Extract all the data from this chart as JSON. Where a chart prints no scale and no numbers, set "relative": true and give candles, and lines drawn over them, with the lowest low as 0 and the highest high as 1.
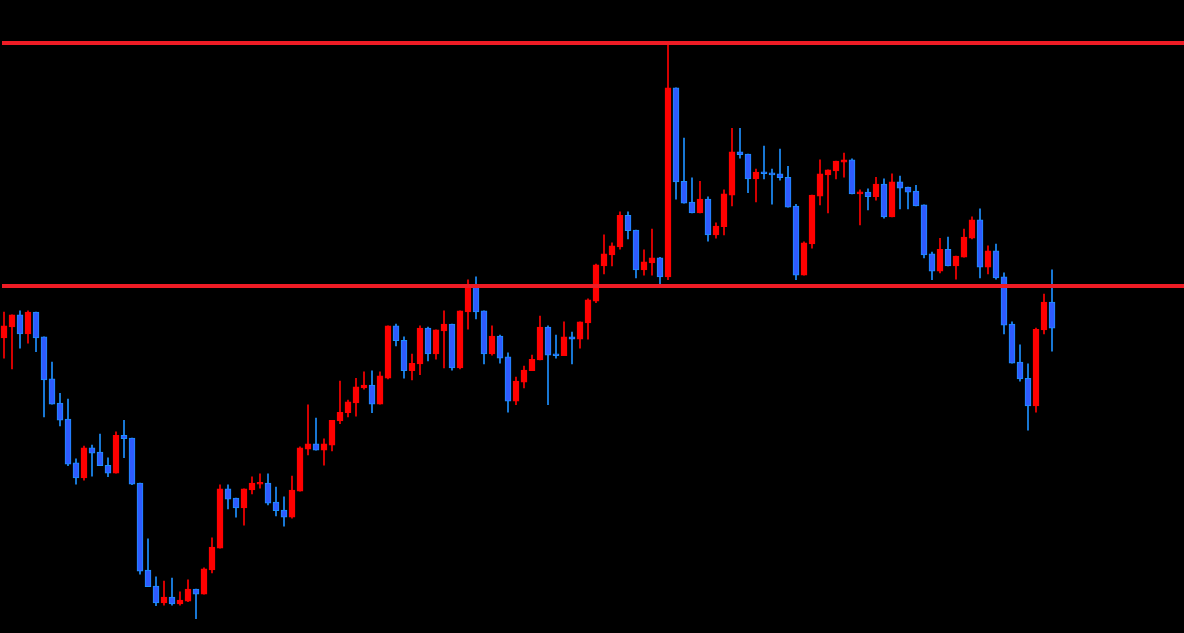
{
  "chart_data": {
    "type": "candlestick",
    "relative": true,
    "categories": [
      null,
      null,
      null,
      null,
      null,
      null,
      null,
      null,
      null,
      null,
      null,
      null,
      null,
      null,
      null,
      null,
      null,
      null,
      null,
      null,
      null,
      null,
      null,
      null,
      null,
      null,
      null,
      null,
      null,
      null,
      null,
      null,
      null,
      null,
      null,
      null,
      null,
      null,
      null,
      null,
      null,
      null,
      null,
      null,
      null,
      null,
      null,
      null,
      null,
      null,
      null,
      null,
      null,
      null,
      null,
      null,
      null,
      null,
      null,
      null,
      null,
      null,
      null,
      null,
      null,
      null,
      null,
      null,
      null,
      null,
      null,
      null,
      null,
      null,
      null,
      null,
      null,
      null,
      null,
      null,
      null,
      null,
      null,
      null,
      null,
      null,
      null,
      null,
      null,
      null,
      null,
      null,
      null,
      null,
      null,
      null,
      null,
      null,
      null,
      null,
      null,
      null,
      null,
      null,
      null,
      null,
      null,
      null,
      null,
      null,
      null,
      null,
      null,
      null,
      null,
      null,
      null,
      null,
      null,
      null,
      null,
      null,
      null,
      null,
      null,
      null,
      null,
      null,
      null,
      null,
      null,
      null
    ],
    "ohlc": [
      [
        0.488,
        0.533,
        0.453,
        0.509
      ],
      [
        0.507,
        0.528,
        0.434,
        0.528
      ],
      [
        0.528,
        0.535,
        0.47,
        0.495
      ],
      [
        0.495,
        0.535,
        0.479,
        0.533
      ],
      [
        0.533,
        0.533,
        0.464,
        0.488
      ],
      [
        0.49,
        0.49,
        0.351,
        0.415
      ],
      [
        0.417,
        0.446,
        0.373,
        0.373
      ],
      [
        0.375,
        0.392,
        0.335,
        0.345
      ],
      [
        0.347,
        0.382,
        0.266,
        0.269
      ],
      [
        0.271,
        0.278,
        0.234,
        0.245
      ],
      [
        0.245,
        0.3,
        0.241,
        0.297
      ],
      [
        0.297,
        0.302,
        0.248,
        0.288
      ],
      [
        0.29,
        0.321,
        0.266,
        0.266
      ],
      [
        0.267,
        0.28,
        0.247,
        0.253
      ],
      [
        0.253,
        0.325,
        0.253,
        0.319
      ],
      [
        0.319,
        0.345,
        0.28,
        0.313
      ],
      [
        0.314,
        0.314,
        0.233,
        0.234
      ],
      [
        0.236,
        0.236,
        0.078,
        0.083
      ],
      [
        0.085,
        0.139,
        0.056,
        0.056
      ],
      [
        0.057,
        0.073,
        0.023,
        0.028
      ],
      [
        0.028,
        0.066,
        0.024,
        0.038
      ],
      [
        0.038,
        0.071,
        0.024,
        0.026
      ],
      [
        0.026,
        0.047,
        0.024,
        0.033
      ],
      [
        0.031,
        0.068,
        0.03,
        0.052
      ],
      [
        0.052,
        0.052,
        0,
        0.043
      ],
      [
        0.043,
        0.089,
        0.043,
        0.087
      ],
      [
        0.085,
        0.141,
        0.08,
        0.125
      ],
      [
        0.123,
        0.233,
        0.123,
        0.226
      ],
      [
        0.226,
        0.233,
        0.191,
        0.208
      ],
      [
        0.21,
        0.21,
        0.177,
        0.193
      ],
      [
        0.193,
        0.226,
        0.163,
        0.226
      ],
      [
        0.224,
        0.247,
        0.217,
        0.236
      ],
      [
        0.234,
        0.252,
        0.227,
        0.236
      ],
      [
        0.236,
        0.252,
        0.198,
        0.201
      ],
      [
        0.203,
        0.229,
        0.179,
        0.188
      ],
      [
        0.189,
        0.212,
        0.161,
        0.177
      ],
      [
        0.177,
        0.248,
        0.175,
        0.224
      ],
      [
        0.222,
        0.299,
        0.222,
        0.297
      ],
      [
        0.295,
        0.372,
        0.285,
        0.304
      ],
      [
        0.304,
        0.349,
        0.293,
        0.293
      ],
      [
        0.293,
        0.313,
        0.267,
        0.304
      ],
      [
        0.302,
        0.345,
        0.292,
        0.345
      ],
      [
        0.344,
        0.413,
        0.339,
        0.359
      ],
      [
        0.358,
        0.38,
        0.351,
        0.377
      ],
      [
        0.375,
        0.418,
        0.352,
        0.403
      ],
      [
        0.401,
        0.429,
        0.399,
        0.406
      ],
      [
        0.406,
        0.431,
        0.358,
        0.373
      ],
      [
        0.373,
        0.429,
        0.373,
        0.422
      ],
      [
        0.418,
        0.509,
        0.417,
        0.509
      ],
      [
        0.509,
        0.512,
        0.474,
        0.483
      ],
      [
        0.484,
        0.49,
        0.418,
        0.431
      ],
      [
        0.431,
        0.46,
        0.415,
        0.444
      ],
      [
        0.443,
        0.509,
        0.424,
        0.505
      ],
      [
        0.505,
        0.507,
        0.448,
        0.46
      ],
      [
        0.46,
        0.502,
        0.451,
        0.502
      ],
      [
        0.5,
        0.535,
        0.436,
        0.512
      ],
      [
        0.512,
        0.512,
        0.432,
        0.436
      ],
      [
        0.436,
        0.535,
        0.434,
        0.535
      ],
      [
        0.533,
        0.589,
        0.503,
        0.58
      ],
      [
        0.576,
        0.594,
        0.521,
        0.533
      ],
      [
        0.535,
        0.535,
        0.443,
        0.46
      ],
      [
        0.46,
        0.509,
        0.458,
        0.491
      ],
      [
        0.491,
        0.493,
        0.444,
        0.453
      ],
      [
        0.455,
        0.462,
        0.359,
        0.378
      ],
      [
        0.378,
        0.42,
        0.372,
        0.413
      ],
      [
        0.411,
        0.439,
        0.401,
        0.432
      ],
      [
        0.431,
        0.458,
        0.431,
        0.451
      ],
      [
        0.45,
        0.526,
        0.45,
        0.507
      ],
      [
        0.507,
        0.509,
        0.372,
        0.458
      ],
      [
        0.46,
        0.493,
        0.453,
        0.457
      ],
      [
        0.457,
        0.516,
        0.457,
        0.49
      ],
      [
        0.49,
        0.498,
        0.443,
        0.486
      ],
      [
        0.486,
        0.516,
        0.47,
        0.516
      ],
      [
        0.514,
        0.556,
        0.486,
        0.554
      ],
      [
        0.552,
        0.616,
        0.549,
        0.615
      ],
      [
        0.613,
        0.667,
        0.599,
        0.634
      ],
      [
        0.632,
        0.653,
        0.613,
        0.648
      ],
      [
        0.646,
        0.707,
        0.642,
        0.701
      ],
      [
        0.701,
        0.707,
        0.66,
        0.674
      ],
      [
        0.675,
        0.675,
        0.592,
        0.606
      ],
      [
        0.606,
        0.641,
        0.597,
        0.62
      ],
      [
        0.618,
        0.677,
        0.597,
        0.627
      ],
      [
        0.627,
        0.628,
        0.582,
        0.594
      ],
      [
        0.594,
        1,
        0.589,
        0.922
      ],
      [
        0.922,
        0.922,
        0.729,
        0.759
      ],
      [
        0.76,
        0.835,
        0.722,
        0.722
      ],
      [
        0.724,
        0.766,
        0.705,
        0.705
      ],
      [
        0.705,
        0.76,
        0.705,
        0.729
      ],
      [
        0.729,
        0.733,
        0.656,
        0.667
      ],
      [
        0.667,
        0.688,
        0.661,
        0.682
      ],
      [
        0.681,
        0.745,
        0.667,
        0.738
      ],
      [
        0.736,
        0.852,
        0.717,
        0.811
      ],
      [
        0.811,
        0.852,
        0.8,
        0.806
      ],
      [
        0.807,
        0.807,
        0.74,
        0.764
      ],
      [
        0.764,
        0.781,
        0.724,
        0.776
      ],
      [
        0.776,
        0.821,
        0.764,
        0.773
      ],
      [
        0.774,
        0.781,
        0.72,
        0.771
      ],
      [
        0.773,
        0.816,
        0.762,
        0.766
      ],
      [
        0.767,
        0.786,
        0.715,
        0.715
      ],
      [
        0.717,
        0.72,
        0.589,
        0.597
      ],
      [
        0.597,
        0.655,
        0.597,
        0.653
      ],
      [
        0.651,
        0.736,
        0.644,
        0.736
      ],
      [
        0.734,
        0.797,
        0.719,
        0.773
      ],
      [
        0.771,
        0.78,
        0.705,
        0.78
      ],
      [
        0.778,
        0.795,
        0.764,
        0.795
      ],
      [
        0.793,
        0.809,
        0.767,
        0.797
      ],
      [
        0.797,
        0.799,
        0.738,
        0.738
      ],
      [
        0.738,
        0.745,
        0.684,
        0.741
      ],
      [
        0.741,
        0.747,
        0.71,
        0.733
      ],
      [
        0.733,
        0.767,
        0.727,
        0.755
      ],
      [
        0.755,
        0.764,
        0.696,
        0.698
      ],
      [
        0.698,
        0.773,
        0.698,
        0.759
      ],
      [
        0.759,
        0.769,
        0.712,
        0.748
      ],
      [
        0.75,
        0.75,
        0.712,
        0.741
      ],
      [
        0.743,
        0.753,
        0.717,
        0.717
      ],
      [
        0.719,
        0.719,
        0.627,
        0.632
      ],
      [
        0.634,
        0.637,
        0.589,
        0.604
      ],
      [
        0.604,
        0.661,
        0.601,
        0.642
      ],
      [
        0.642,
        0.663,
        0.613,
        0.613
      ],
      [
        0.613,
        0.63,
        0.59,
        0.63
      ],
      [
        0.628,
        0.677,
        0.628,
        0.663
      ],
      [
        0.661,
        0.698,
        0.66,
        0.693
      ],
      [
        0.693,
        0.712,
        0.592,
        0.611
      ],
      [
        0.611,
        0.648,
        0.599,
        0.639
      ],
      [
        0.639,
        0.651,
        0.59,
        0.592
      ],
      [
        0.594,
        0.601,
        0.495,
        0.51
      ],
      [
        0.512,
        0.516,
        0.444,
        0.444
      ],
      [
        0.446,
        0.476,
        0.413,
        0.417
      ],
      [
        0.418,
        0.443,
        0.328,
        0.37
      ],
      [
        0.37,
        0.505,
        0.359,
        0.503
      ],
      [
        0.502,
        0.564,
        0.495,
        0.55
      ],
      [
        0.55,
        0.606,
        0.465,
        0.505
      ]
    ],
    "ref_lines": [
      {
        "axis": "y",
        "value": 1,
        "color": "#ee1c25"
      },
      {
        "axis": "y",
        "value": 0.578,
        "color": "#ee1c25"
      }
    ]
  }
}
